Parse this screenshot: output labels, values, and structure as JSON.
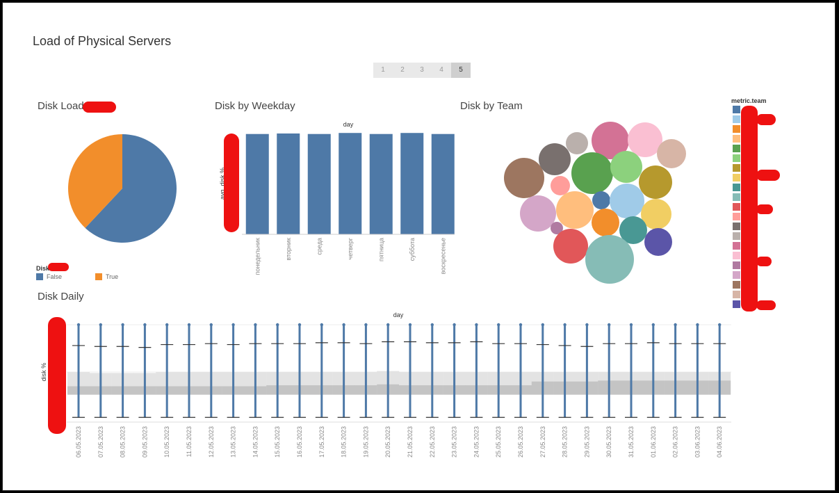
{
  "page": {
    "title": "Load of Physical Servers",
    "pages": [
      "1",
      "2",
      "3",
      "4",
      "5"
    ],
    "active_page": "5"
  },
  "disk_load": {
    "title": "Disk Load",
    "legend_title": "Disk",
    "legend": [
      {
        "label": "False",
        "color": "#4e79a7"
      },
      {
        "label": "True",
        "color": "#f28e2b"
      }
    ]
  },
  "disk_weekday": {
    "title": "Disk by Weekday",
    "x_header": "day",
    "y_label": "avg. disk %"
  },
  "disk_team": {
    "title": "Disk by Team",
    "legend_title": "metric.team",
    "legend_colors": [
      "#4e79a7",
      "#a0cbe8",
      "#f28e2b",
      "#ffbe7d",
      "#59a14f",
      "#8cd17d",
      "#b6992d",
      "#f1ce63",
      "#499894",
      "#86bcb6",
      "#e15759",
      "#ff9d9a",
      "#79706e",
      "#bab0ac",
      "#d37295",
      "#fabfd2",
      "#b07aa1",
      "#d4a6c8",
      "#9d7660",
      "#d7b5a6",
      "#5b55a8"
    ]
  },
  "disk_daily": {
    "title": "Disk Daily",
    "x_header": "day",
    "y_label": "disk %"
  },
  "chart_data": [
    {
      "type": "pie",
      "title": "Disk Load",
      "legend_title": "Disk",
      "categories": [
        "False",
        "True"
      ],
      "values": [
        62,
        38
      ],
      "colors": [
        "#4e79a7",
        "#f28e2b"
      ],
      "legend": "bottom-left"
    },
    {
      "type": "bar",
      "title": "Disk by Weekday",
      "xlabel": "day",
      "ylabel": "avg. disk %",
      "categories": [
        "понедельник",
        "вторник",
        "среда",
        "четверг",
        "пятница",
        "суббота",
        "воскресенье"
      ],
      "values": [
        97.5,
        98,
        97.5,
        98.5,
        97.5,
        98.5,
        97.5
      ],
      "ylim": [
        0,
        100
      ],
      "color": "#4e79a7"
    },
    {
      "type": "scatter",
      "title": "Disk by Team",
      "legend_title": "metric.team",
      "legend": "right",
      "bubbles": [
        {
          "color": "#9d7660",
          "value": 29
        },
        {
          "color": "#79706e",
          "value": 23
        },
        {
          "color": "#bab0ac",
          "value": 16
        },
        {
          "color": "#d37295",
          "value": 27
        },
        {
          "color": "#fabfd2",
          "value": 25
        },
        {
          "color": "#d7b5a6",
          "value": 21
        },
        {
          "color": "#59a14f",
          "value": 30
        },
        {
          "color": "#8cd17d",
          "value": 23
        },
        {
          "color": "#b6992d",
          "value": 24
        },
        {
          "color": "#ff9d9a",
          "value": 14
        },
        {
          "color": "#d4a6c8",
          "value": 26
        },
        {
          "color": "#ffbe7d",
          "value": 27
        },
        {
          "color": "#4e79a7",
          "value": 13
        },
        {
          "color": "#a0cbe8",
          "value": 25
        },
        {
          "color": "#f1ce63",
          "value": 22
        },
        {
          "color": "#f28e2b",
          "value": 20
        },
        {
          "color": "#499894",
          "value": 20
        },
        {
          "color": "#b07aa1",
          "value": 9
        },
        {
          "color": "#e15759",
          "value": 25
        },
        {
          "color": "#86bcb6",
          "value": 35
        },
        {
          "color": "#5b55a8",
          "value": 20
        }
      ]
    },
    {
      "type": "box",
      "title": "Disk Daily",
      "xlabel": "day",
      "ylabel": "disk %",
      "categories": [
        "06.05.2023",
        "07.05.2023",
        "08.05.2023",
        "09.05.2023",
        "10.05.2023",
        "11.05.2023",
        "12.05.2023",
        "13.05.2023",
        "14.05.2023",
        "15.05.2023",
        "16.05.2023",
        "17.05.2023",
        "18.05.2023",
        "19.05.2023",
        "20.05.2023",
        "21.05.2023",
        "22.05.2023",
        "23.05.2023",
        "24.05.2023",
        "25.05.2023",
        "26.05.2023",
        "27.05.2023",
        "28.05.2023",
        "29.05.2023",
        "30.05.2023",
        "31.05.2023",
        "01.06.2023",
        "02.06.2023",
        "03.06.2023",
        "04.06.2023"
      ],
      "ylim": [
        0,
        100
      ],
      "min": [
        2,
        2,
        2,
        2,
        2,
        2,
        2,
        2,
        2,
        2,
        2,
        2,
        2,
        2,
        2,
        2,
        2,
        2,
        2,
        2,
        2,
        2,
        2,
        2,
        2,
        2,
        2,
        2,
        2,
        2
      ],
      "q1": [
        26,
        26,
        26,
        26,
        26,
        26,
        26,
        26,
        26,
        26,
        26,
        26,
        26,
        26,
        26,
        26,
        26,
        26,
        26,
        26,
        26,
        26,
        26,
        26,
        26,
        26,
        26,
        26,
        26,
        26
      ],
      "median": [
        35,
        35,
        35,
        35,
        35,
        35,
        35,
        35,
        35,
        36,
        36,
        36,
        36,
        36,
        37,
        36,
        36,
        36,
        36,
        36,
        36,
        40,
        40,
        40,
        41,
        41,
        41,
        41,
        41,
        41
      ],
      "q3": [
        50,
        49,
        49,
        49,
        50,
        50,
        50,
        50,
        50,
        50,
        50,
        50,
        50,
        50,
        51,
        50,
        50,
        50,
        50,
        50,
        50,
        50,
        50,
        50,
        50,
        50,
        50,
        50,
        50,
        50
      ],
      "upper_whisker": [
        78,
        77,
        77,
        76,
        79,
        79,
        80,
        79,
        80,
        80,
        80,
        81,
        81,
        80,
        82,
        82,
        81,
        81,
        82,
        80,
        80,
        79,
        78,
        77,
        80,
        80,
        81,
        80,
        80,
        80
      ],
      "max": [
        100,
        100,
        100,
        100,
        100,
        100,
        100,
        100,
        100,
        100,
        100,
        100,
        100,
        100,
        100,
        100,
        100,
        100,
        100,
        100,
        100,
        100,
        100,
        100,
        100,
        100,
        100,
        100,
        100,
        100
      ]
    }
  ]
}
